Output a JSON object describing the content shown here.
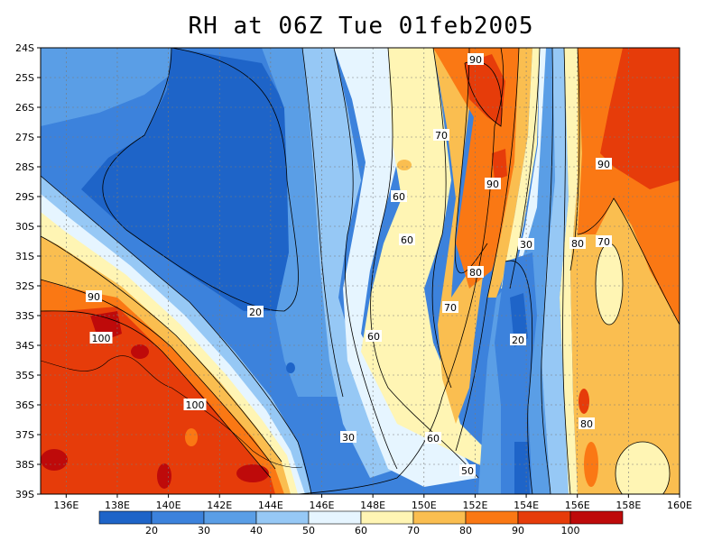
{
  "title": "RH at 06Z Tue 01feb2005",
  "lat_ticks": [
    "24S",
    "25S",
    "26S",
    "27S",
    "28S",
    "29S",
    "30S",
    "31S",
    "32S",
    "33S",
    "34S",
    "35S",
    "36S",
    "37S",
    "38S",
    "39S"
  ],
  "lon_ticks": [
    "136E",
    "138E",
    "140E",
    "142E",
    "144E",
    "146E",
    "148E",
    "150E",
    "152E",
    "154E",
    "156E",
    "158E",
    "160E"
  ],
  "legend": {
    "labels": [
      "20",
      "30",
      "40",
      "50",
      "60",
      "70",
      "80",
      "90",
      "100"
    ],
    "colors": [
      "#1e64c8",
      "#3c82dc",
      "#5a9ee6",
      "#96c8f5",
      "#e6f5ff",
      "#fff5b4",
      "#fabe50",
      "#fa7814",
      "#e63c0a",
      "#be0a0a"
    ]
  },
  "contour_labels": [
    {
      "text": "90"
    },
    {
      "text": "70"
    },
    {
      "text": "90"
    },
    {
      "text": "90"
    },
    {
      "text": "60"
    },
    {
      "text": "60"
    },
    {
      "text": "30"
    },
    {
      "text": "80"
    },
    {
      "text": "70"
    },
    {
      "text": "80"
    },
    {
      "text": "70"
    },
    {
      "text": "20"
    },
    {
      "text": "90"
    },
    {
      "text": "100"
    },
    {
      "text": "60"
    },
    {
      "text": "20"
    },
    {
      "text": "100"
    },
    {
      "text": "80"
    },
    {
      "text": "30"
    },
    {
      "text": "60"
    },
    {
      "text": "50"
    }
  ]
}
